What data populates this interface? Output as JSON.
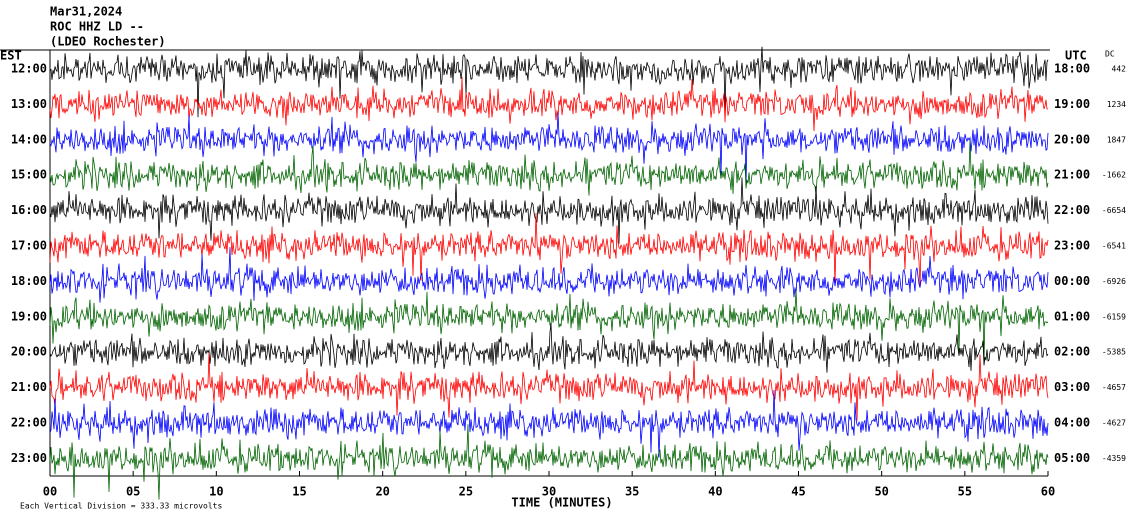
{
  "chart_data": {
    "type": "helicorder",
    "title": "Mar31,2024",
    "subtitle": "ROC HHZ LD --",
    "station": "(LDEO Rochester)",
    "left_label": "EST",
    "right_label": "UTC",
    "dc_label": "DC",
    "categories": [
      "12:00",
      "13:00",
      "14:00",
      "15:00",
      "16:00",
      "17:00",
      "18:00",
      "19:00",
      "20:00",
      "21:00",
      "22:00",
      "23:00"
    ],
    "right_categories": [
      "18:00",
      "19:00",
      "20:00",
      "21:00",
      "22:00",
      "23:00",
      "00:00",
      "01:00",
      "02:00",
      "03:00",
      "04:00",
      "05:00"
    ],
    "dc_values": [
      442,
      1234,
      1847,
      -1662,
      -6654,
      -6541,
      -6926,
      -6159,
      -5385,
      -4657,
      -4627,
      -4359
    ],
    "trace_colors": [
      "#000000",
      "#ff0000",
      "#0000ff",
      "#006400"
    ],
    "xlabel": "TIME (MINUTES)",
    "xlim": [
      0,
      60
    ],
    "xticks": [
      {
        "value": 0,
        "label": "00"
      },
      {
        "value": 5,
        "label": "05"
      },
      10,
      15,
      20,
      25,
      30,
      35,
      40,
      45,
      50,
      55,
      60
    ],
    "footnote": "Each Vertical Division =  333.33 microvolts"
  }
}
